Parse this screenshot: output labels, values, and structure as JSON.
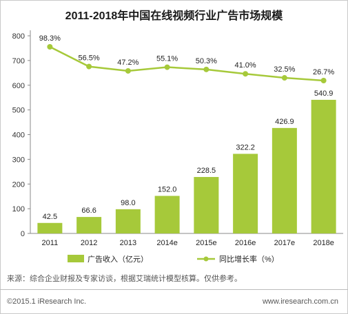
{
  "chart_data": {
    "type": "bar",
    "title": "2011-2018年中国在线视频行业广告市场规模",
    "categories": [
      "2011",
      "2012",
      "2013",
      "2014e",
      "2015e",
      "2016e",
      "2017e",
      "2018e"
    ],
    "series": [
      {
        "name": "广告收入（亿元）",
        "type": "bar",
        "axis": "left",
        "values": [
          42.5,
          66.6,
          98.0,
          152.0,
          228.5,
          322.2,
          426.9,
          540.9
        ],
        "labels": [
          "42.5",
          "66.6",
          "98.0",
          "152.0",
          "228.5",
          "322.2",
          "426.9",
          "540.9"
        ]
      },
      {
        "name": "同比增长率（%）",
        "type": "line",
        "axis": "right",
        "values": [
          98.3,
          56.5,
          47.2,
          55.1,
          50.3,
          41.0,
          32.5,
          26.7
        ],
        "labels": [
          "98.3%",
          "56.5%",
          "47.2%",
          "55.1%",
          "50.3%",
          "41.0%",
          "32.5%",
          "26.7%"
        ]
      }
    ],
    "yticks": [
      "0",
      "100",
      "200",
      "300",
      "400",
      "500",
      "600",
      "700",
      "800"
    ],
    "ylim": [
      0,
      800
    ],
    "legend_position": "bottom",
    "grid": false,
    "colors": {
      "bar": "#a6c93a",
      "line": "#a6c93a",
      "marker": "#a6c93a"
    }
  },
  "footer": {
    "source": "来源：综合企业财报及专家访谈，根据艾瑞统计模型核算。仅供参考。",
    "copyright": "©2015.1 iResearch Inc.",
    "website": "www.iresearch.com.cn"
  }
}
